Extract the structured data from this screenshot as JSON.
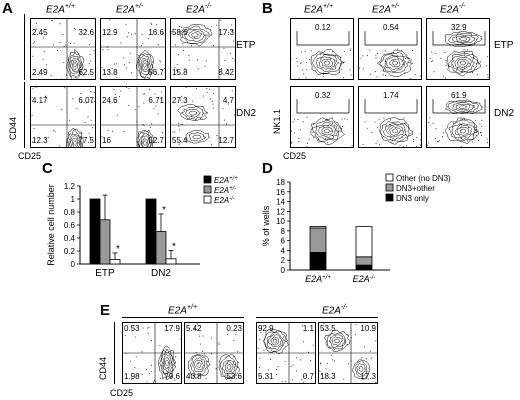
{
  "panelA": {
    "letter": "A",
    "genotypes": [
      {
        "base": "E2A",
        "sup": "+/+"
      },
      {
        "base": "E2A",
        "sup": "+/-"
      },
      {
        "base": "E2A",
        "sup": "-/-"
      }
    ],
    "rows": [
      "ETP",
      "DN2"
    ],
    "xlabel": "CD25",
    "ylabel": "CD44",
    "quads": [
      [
        {
          "tl": "2.45",
          "tr": "32.6",
          "bl": "2.49",
          "br": "62.5"
        },
        {
          "tl": "12.9",
          "tr": "16.6",
          "bl": "13.8",
          "br": "56.7"
        },
        {
          "tl": "58.6",
          "tr": "17.3",
          "bl": "15.8",
          "br": "8.42"
        }
      ],
      [
        {
          "tl": "4.17",
          "tr": "6.07",
          "bl": "12.3",
          "br": "77.5"
        },
        {
          "tl": "24.6",
          "tr": "6.71",
          "bl": "16",
          "br": "52.7"
        },
        {
          "tl": "27.3",
          "tr": "4.7",
          "bl": "55.4",
          "br": "12.7"
        }
      ]
    ]
  },
  "panelB": {
    "letter": "B",
    "genotypes": [
      {
        "base": "E2A",
        "sup": "+/+"
      },
      {
        "base": "E2A",
        "sup": "+/-"
      },
      {
        "base": "E2A",
        "sup": "-/-"
      }
    ],
    "rows": [
      "ETP",
      "DN2"
    ],
    "xlabel": "CD25",
    "ylabel": "NK1.1",
    "gates": [
      [
        "0.12",
        "0.54",
        "32.9"
      ],
      [
        "0.32",
        "1.74",
        "61.9"
      ]
    ]
  },
  "panelC": {
    "letter": "C",
    "chart_data": {
      "type": "bar",
      "categories": [
        "ETP",
        "DN2"
      ],
      "series": [
        {
          "name": "E2A+/+",
          "legend_base": "E2A",
          "legend_sup": "+/+",
          "values": [
            1.0,
            1.0
          ],
          "errors": [
            0,
            0
          ],
          "color": "#000000"
        },
        {
          "name": "E2A+/-",
          "legend_base": "E2A",
          "legend_sup": "+/-",
          "values": [
            0.68,
            0.5
          ],
          "errors": [
            0.38,
            0.27
          ],
          "color": "#999999"
        },
        {
          "name": "E2A-/-",
          "legend_base": "E2A",
          "legend_sup": "-/-",
          "values": [
            0.07,
            0.08
          ],
          "errors": [
            0.1,
            0.13
          ],
          "color": "#ffffff"
        }
      ],
      "significance": [
        [
          false,
          false,
          true
        ],
        [
          false,
          true,
          true
        ]
      ],
      "star": "*",
      "ylabel": "Relative cell number",
      "ylim": [
        0,
        1.2
      ],
      "yticks": [
        "0",
        "0.2",
        "0.4",
        "0.6",
        "0.8",
        "1",
        "1.2"
      ]
    }
  },
  "panelD": {
    "letter": "D",
    "chart_data": {
      "type": "bar",
      "stacked": true,
      "categories": [
        {
          "base": "E2A",
          "sup": "+/+"
        },
        {
          "base": "E2A",
          "sup": "-/-"
        }
      ],
      "series": [
        {
          "name": "DN3 only",
          "values": [
            3.6,
            1.0
          ],
          "color": "#000000"
        },
        {
          "name": "DN3+other",
          "values": [
            5.0,
            1.7
          ],
          "color": "#999999"
        },
        {
          "name": "Other (no DN3)",
          "values": [
            0.3,
            6.2
          ],
          "color": "#ffffff"
        }
      ],
      "legend_order": [
        "Other (no DN3)",
        "DN3+other",
        "DN3 only"
      ],
      "ylabel": "% of wells",
      "ylim": [
        0,
        18
      ],
      "yticks": [
        "0",
        "2",
        "4",
        "6",
        "8",
        "10",
        "12",
        "14",
        "16",
        "18"
      ]
    }
  },
  "panelE": {
    "letter": "E",
    "genotypes": [
      {
        "base": "E2A",
        "sup": "+/+"
      },
      {
        "base": "E2A",
        "sup": "-/-"
      }
    ],
    "xlabel": "CD25",
    "ylabel": "CD44",
    "quads": [
      {
        "tl": "0.53",
        "tr": "17.9",
        "bl": "1.98",
        "br": "79.6"
      },
      {
        "tl": "5.42",
        "tr": "0.23",
        "bl": "40.8",
        "br": "53.6"
      },
      {
        "tl": "92.9",
        "tr": "1.1",
        "bl": "5.31",
        "br": "0.7"
      },
      {
        "tl": "53.5",
        "tr": "10.9",
        "bl": "18.3",
        "br": "17.3"
      }
    ]
  }
}
